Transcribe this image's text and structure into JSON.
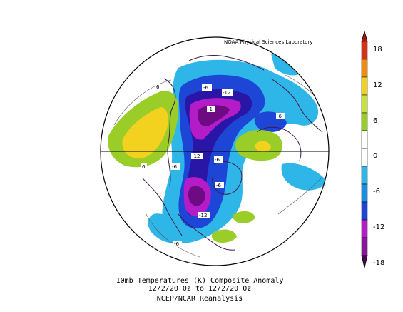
{
  "credit": "NOAA Physical Sciences Laboratory",
  "caption": {
    "line1": "10mb Temperatures (K)   Composite Anomaly",
    "line2": "12/2/20 0z  to 12/2/20 0z",
    "line3": "NCEP/NCAR Reanalysis"
  },
  "colorbar": {
    "labels": [
      "18",
      "12",
      "6",
      "0",
      "-6",
      "-12",
      "-18"
    ],
    "colors": [
      "#d33218",
      "#f08c10",
      "#f2d21e",
      "#9acd28",
      "#ffffff",
      "#ffffff",
      "#2eb6e8",
      "#1d46d6",
      "#2a16a6",
      "#b41cc8",
      "#6e0a82"
    ]
  },
  "contour_labels": [
    "-6",
    "-12",
    "-1",
    "-6",
    "-12",
    "-6",
    "-6",
    "-12",
    "-6",
    "6",
    "6",
    "-6"
  ],
  "colors": {
    "positive_strong": "#f2d21e",
    "positive": "#9acd28",
    "negative": "#2eb6e8",
    "negative_mid": "#1d46d6",
    "negative_strong": "#b41cc8",
    "negative_extreme": "#6e0a82"
  }
}
